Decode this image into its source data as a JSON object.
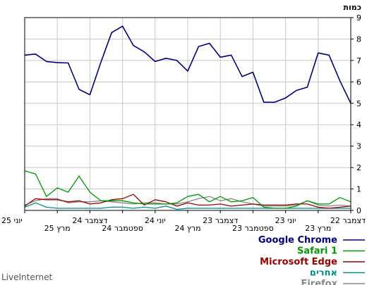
{
  "page": {
    "footer": "LiveInternet"
  },
  "chart_data": {
    "type": "line",
    "title": "כמות",
    "xlabel": "",
    "ylabel": "",
    "ylim": [
      0,
      9
    ],
    "y_ticks": [
      0,
      1,
      2,
      3,
      4,
      5,
      6,
      7,
      8,
      9
    ],
    "x_tick_labels": [
      "יוני 25",
      "מרץ 25",
      "דצמבר 24",
      "ספטמבר 24",
      "יוני 24",
      "מרץ 24",
      "דצמבר 23",
      "ספטמבר 23",
      "יוני 23",
      "מרץ 23",
      "דצמבר 22"
    ],
    "grid": true,
    "legend_position": "bottom-right",
    "series": [
      {
        "name": "Google Chrome",
        "color": "#00007f",
        "values": [
          7.25,
          7.3,
          6.95,
          6.9,
          6.88,
          5.65,
          5.4,
          6.9,
          8.3,
          8.6,
          7.7,
          7.4,
          6.95,
          7.1,
          7.0,
          6.5,
          7.65,
          7.8,
          7.15,
          7.25,
          6.25,
          6.45,
          5.05,
          5.05,
          5.25,
          5.6,
          5.75,
          7.35,
          7.25,
          6.05,
          5.0
        ]
      },
      {
        "name": "Safari 1",
        "color": "#009900",
        "values": [
          1.85,
          1.7,
          0.65,
          1.05,
          0.85,
          1.6,
          0.85,
          0.45,
          0.45,
          0.45,
          0.35,
          0.3,
          0.3,
          0.3,
          0.35,
          0.65,
          0.75,
          0.4,
          0.65,
          0.4,
          0.45,
          0.6,
          0.15,
          0.1,
          0.1,
          0.2,
          0.45,
          0.3,
          0.3,
          0.6,
          0.4
        ]
      },
      {
        "name": "Microsoft Edge",
        "color": "#990000",
        "values": [
          0.2,
          0.55,
          0.5,
          0.5,
          0.4,
          0.45,
          0.3,
          0.35,
          0.5,
          0.55,
          0.75,
          0.25,
          0.5,
          0.4,
          0.2,
          0.35,
          0.25,
          0.25,
          0.3,
          0.2,
          0.25,
          0.3,
          0.25,
          0.25,
          0.25,
          0.3,
          0.3,
          0.15,
          0.1,
          0.15,
          0.2
        ]
      },
      {
        "name": "אחרים",
        "color": "#008b8b",
        "values": [
          0.15,
          0.35,
          0.15,
          0.1,
          0.1,
          0.1,
          0.1,
          0.1,
          0.15,
          0.15,
          0.1,
          0.15,
          0.1,
          0.2,
          0.05,
          0.1,
          0.1,
          0.1,
          0.1,
          0.1,
          0.1,
          0.1,
          0.1,
          0.1,
          0.1,
          0.1,
          0.1,
          0.1,
          0.1,
          0.1,
          0.1
        ]
      },
      {
        "name": "Firefox",
        "color": "#888888",
        "values": [
          0.25,
          0.45,
          0.55,
          0.55,
          0.35,
          0.4,
          0.4,
          0.45,
          0.4,
          0.35,
          0.3,
          0.35,
          0.35,
          0.3,
          0.3,
          0.4,
          0.55,
          0.65,
          0.45,
          0.55,
          0.4,
          0.3,
          0.2,
          0.2,
          0.2,
          0.25,
          0.45,
          0.25,
          0.2,
          0.25,
          0.2
        ]
      }
    ]
  }
}
